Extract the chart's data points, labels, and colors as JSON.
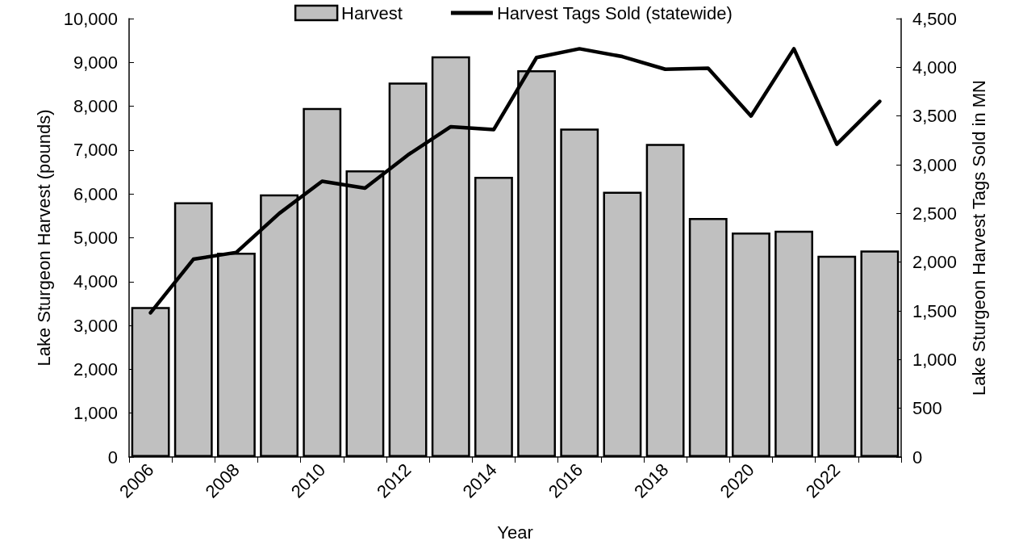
{
  "chart_data": {
    "type": "bar",
    "xlabel": "Year",
    "ylabel": "Lake Sturgeon Harvest (pounds)",
    "y2label": "Lake Sturgeon Harvest Tags Sold in MN",
    "categories": [
      "2006",
      null,
      "2008",
      null,
      "2010",
      null,
      "2012",
      null,
      "2014",
      null,
      "2016",
      null,
      "2018",
      null,
      "2020",
      null,
      "2022",
      null
    ],
    "series": [
      {
        "name": "Harvest",
        "color": "#c0c0c0",
        "values": [
          3420,
          5810,
          4660,
          5990,
          7960,
          6540,
          8540,
          9140,
          6390,
          8820,
          7490,
          6050,
          7140,
          5450,
          5120,
          5160,
          4590,
          4710
        ]
      },
      {
        "name": "Harvest Tags Sold (statewide)",
        "type": "line",
        "axis": "y2",
        "color": "#000000",
        "values": [
          1480,
          2030,
          2100,
          2500,
          2830,
          2760,
          3100,
          3390,
          3360,
          4100,
          4190,
          4110,
          3980,
          3990,
          3500,
          4190,
          3210,
          3650
        ]
      }
    ],
    "ylim": [
      0,
      10000
    ],
    "yticks": [
      {
        "value": 0,
        "label": "0"
      },
      {
        "value": 1000,
        "label": "1,000"
      },
      {
        "value": 2000,
        "label": "2,000"
      },
      {
        "value": 3000,
        "label": "3,000"
      },
      {
        "value": 4000,
        "label": "4,000"
      },
      {
        "value": 5000,
        "label": "5,000"
      },
      {
        "value": 6000,
        "label": "6,000"
      },
      {
        "value": 7000,
        "label": "7,000"
      },
      {
        "value": 8000,
        "label": "8,000"
      },
      {
        "value": 9000,
        "label": "9,000"
      },
      {
        "value": 10000,
        "label": "10,000"
      }
    ],
    "y2lim": [
      0,
      4500
    ],
    "y2ticks": [
      {
        "value": 0,
        "label": "0"
      },
      {
        "value": 500,
        "label": "500"
      },
      {
        "value": 1000,
        "label": "1,000"
      },
      {
        "value": 1500,
        "label": "1,500"
      },
      {
        "value": 2000,
        "label": "2,000"
      },
      {
        "value": 2500,
        "label": "2,500"
      },
      {
        "value": 3000,
        "label": "3,000"
      },
      {
        "value": 3500,
        "label": "3,500"
      },
      {
        "value": 4000,
        "label": "4,000"
      },
      {
        "value": 4500,
        "label": "4,500"
      }
    ],
    "legend": "top",
    "grid": false,
    "marker": "none",
    "line_style": "solid"
  }
}
